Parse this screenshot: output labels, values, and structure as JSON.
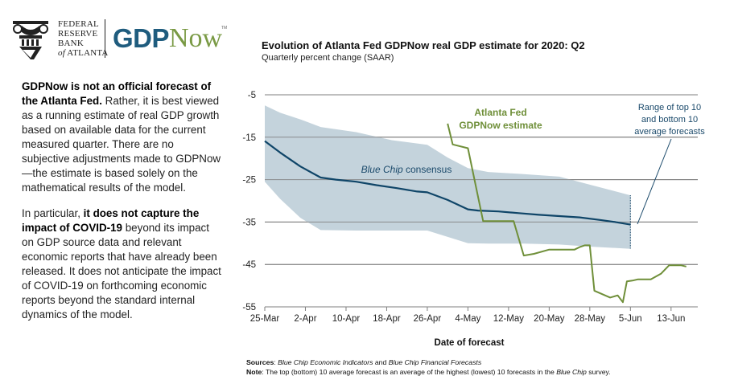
{
  "logo": {
    "bank_lines": [
      "FEDERAL",
      "RESERVE",
      "BANK"
    ],
    "bank_last_italic": "of",
    "bank_last_rest": " ATLANTA",
    "product_part1": "GDP",
    "product_part2": "Now",
    "trademark": "TM"
  },
  "sidebar": {
    "p1_bold": "GDPNow is not an official forecast of the Atlanta Fed.",
    "p1_rest": " Rather, it is best viewed as a running estimate of real GDP growth based on available data for the current measured quarter. There are no subjective adjustments made to GDPNow—the estimate is based solely on the mathematical results of the model.",
    "p2_start": "In particular, ",
    "p2_bold": "it does not capture the impact of COVID-19",
    "p2_rest": " beyond its impact on GDP source data and relevant economic reports that have already been released. It does not anticipate the impact of COVID-19 on forthcoming economic reports beyond the standard internal dynamics of the model."
  },
  "footer": {
    "sources_label": "Sources",
    "sources_sep": ": ",
    "sources_item1": "Blue Chip Economic Indicators",
    "sources_and": " and ",
    "sources_item2": "Blue Chip Financial Forecasts",
    "note_label": "Note",
    "note_text_1": ": The top (bottom) 10 average forecast is an average of the highest (lowest) 10 forecasts in the ",
    "note_italic": "Blue Chip",
    "note_text_2": " survey."
  },
  "colors": {
    "consensus": "#0f4568",
    "band": "#c4d3dc",
    "gdpnow": "#6f8f39",
    "grid": "#7f7f7f",
    "annotation": "#1b4a6b"
  },
  "chart_data": {
    "type": "line",
    "title": "Evolution of Atlanta Fed GDPNow real GDP estimate for 2020: Q2",
    "subtitle": "Quarterly percent change (SAAR)",
    "xlabel": "Date of forecast",
    "ylabel": "",
    "x_unit": "days since 25-Mar",
    "xlim": [
      0,
      82
    ],
    "ylim": [
      -55,
      -5
    ],
    "yticks": [
      -5,
      -15,
      -25,
      -35,
      -45,
      -55
    ],
    "xticks": [
      {
        "day": 0,
        "label": "25-Mar"
      },
      {
        "day": 8,
        "label": "2-Apr"
      },
      {
        "day": 16,
        "label": "10-Apr"
      },
      {
        "day": 24,
        "label": "18-Apr"
      },
      {
        "day": 32,
        "label": "26-Apr"
      },
      {
        "day": 40,
        "label": "4-May"
      },
      {
        "day": 48,
        "label": "12-May"
      },
      {
        "day": 56,
        "label": "20-May"
      },
      {
        "day": 64,
        "label": "28-May"
      },
      {
        "day": 72,
        "label": "5-Jun"
      },
      {
        "day": 80,
        "label": "13-Jun"
      }
    ],
    "grid": true,
    "legend": "inline-annotations",
    "series": [
      {
        "name": "Blue Chip consensus",
        "label_italic": "Blue Chip",
        "label_rest": " consensus",
        "type": "line",
        "x": [
          0,
          3,
          7,
          11,
          14,
          18,
          22,
          26,
          30,
          32,
          36,
          40,
          42,
          46,
          50,
          54,
          58,
          62,
          66,
          69,
          72
        ],
        "y": [
          -15.9,
          -18.6,
          -21.9,
          -24.5,
          -25.0,
          -25.5,
          -26.3,
          -27.0,
          -27.8,
          -28.0,
          -29.8,
          -32.0,
          -32.3,
          -32.5,
          -32.9,
          -33.3,
          -33.6,
          -33.9,
          -34.5,
          -35.0,
          -35.6
        ]
      },
      {
        "name": "Range of top 10 and bottom 10 average forecasts",
        "type": "area",
        "x": [
          0,
          3,
          7,
          11,
          18,
          25,
          32,
          36,
          40,
          44,
          51,
          58,
          64,
          72
        ],
        "upper": [
          -7.5,
          -9.2,
          -10.8,
          -12.6,
          -13.8,
          -15.7,
          -16.8,
          -19.8,
          -22.3,
          -23.2,
          -23.7,
          -24.3,
          -26.2,
          -28.7
        ],
        "lower": [
          -25.5,
          -29.5,
          -34.0,
          -36.9,
          -37.0,
          -37.0,
          -37.0,
          -38.5,
          -40.0,
          -40.1,
          -40.1,
          -40.3,
          -40.8,
          -41.3
        ]
      },
      {
        "name": "Atlanta Fed GDPNow estimate",
        "type": "line",
        "x": [
          36,
          37,
          40,
          43,
          48,
          49,
          51,
          53,
          56,
          61,
          62,
          63,
          64,
          64.9,
          68,
          69.5,
          70.5,
          71.3,
          72.4,
          73.5,
          76,
          78,
          79.6,
          82,
          83
        ],
        "y": [
          -11.8,
          -16.7,
          -17.6,
          -34.8,
          -34.8,
          -34.8,
          -42.9,
          -42.5,
          -41.5,
          -41.5,
          -40.9,
          -40.5,
          -40.5,
          -51.2,
          -52.8,
          -52.3,
          -53.9,
          -49.0,
          -48.8,
          -48.5,
          -48.5,
          -47.2,
          -45.2,
          -45.2,
          -45.5
        ]
      }
    ],
    "annotations": {
      "gdpnow_label_line1": "Atlanta Fed",
      "gdpnow_label_line2": "GDPNow estimate",
      "range_label_line1": "Range of top 10",
      "range_label_line2": "and bottom 10",
      "range_label_line3": "average forecasts"
    }
  }
}
